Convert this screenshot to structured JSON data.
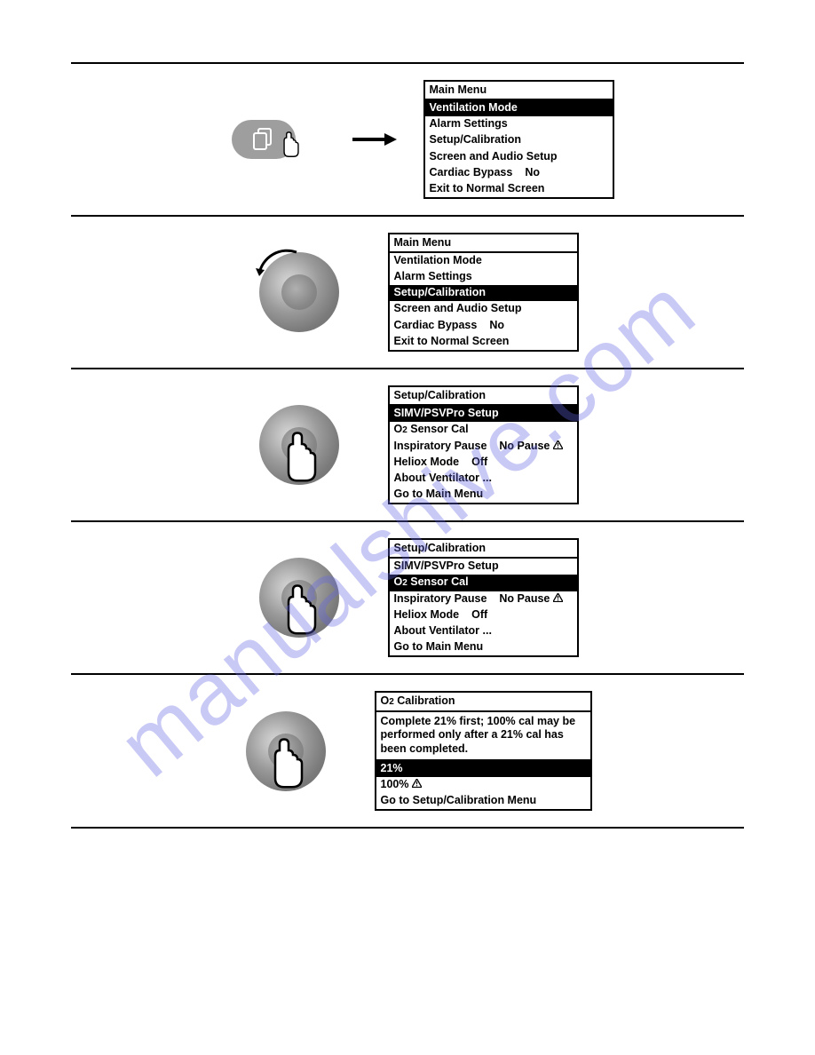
{
  "watermark": "manualshive.com",
  "steps": [
    {
      "control": "pill",
      "menu": {
        "header": "Main Menu",
        "rows": [
          {
            "label": "Ventilation Mode",
            "selected": true
          },
          {
            "label": "Alarm Settings"
          },
          {
            "label": "Setup/Calibration"
          },
          {
            "label": "Screen and Audio Setup"
          },
          {
            "label": "Cardiac Bypass",
            "value": "No"
          },
          {
            "label": "Exit to Normal Screen"
          }
        ]
      }
    },
    {
      "control": "rotate",
      "menu": {
        "header": "Main Menu",
        "rows": [
          {
            "label": "Ventilation Mode"
          },
          {
            "label": "Alarm Settings"
          },
          {
            "label": "Setup/Calibration",
            "selected": true
          },
          {
            "label": "Screen and Audio Setup"
          },
          {
            "label": "Cardiac Bypass",
            "value": "No"
          },
          {
            "label": "Exit to Normal Screen"
          }
        ]
      }
    },
    {
      "control": "press",
      "menu": {
        "header": "Setup/Calibration",
        "rows": [
          {
            "label": "SIMV/PSVPro Setup",
            "selected": true
          },
          {
            "label_html": "O2 Sensor Cal"
          },
          {
            "label": "Inspiratory Pause",
            "value": "No Pause",
            "warn": true
          },
          {
            "label": "Heliox Mode",
            "value": "Off"
          },
          {
            "label": "About Ventilator ..."
          },
          {
            "label": "Go to Main Menu"
          }
        ]
      }
    },
    {
      "control": "press",
      "menu": {
        "header": "Setup/Calibration",
        "rows": [
          {
            "label": "SIMV/PSVPro Setup"
          },
          {
            "label_html": "O2 Sensor Cal",
            "selected": true
          },
          {
            "label": "Inspiratory Pause",
            "value": "No Pause",
            "warn": true
          },
          {
            "label": "Heliox Mode",
            "value": "Off"
          },
          {
            "label": "About Ventilator ..."
          },
          {
            "label": "Go to Main Menu"
          }
        ]
      }
    },
    {
      "control": "press",
      "menu": {
        "wide": true,
        "header_html": "O2 Calibration",
        "text": "Complete 21% first; 100% cal may be performed only after a 21% cal has been completed.",
        "rows": [
          {
            "label": "21%",
            "selected": true
          },
          {
            "label": "100%",
            "warn": true
          },
          {
            "label": "Go to Setup/Calibration Menu"
          }
        ]
      }
    }
  ],
  "colors": {
    "black": "#000000",
    "white": "#ffffff",
    "grey_button": "#9e9e9e",
    "watermark": "rgba(100,100,230,0.35)"
  }
}
